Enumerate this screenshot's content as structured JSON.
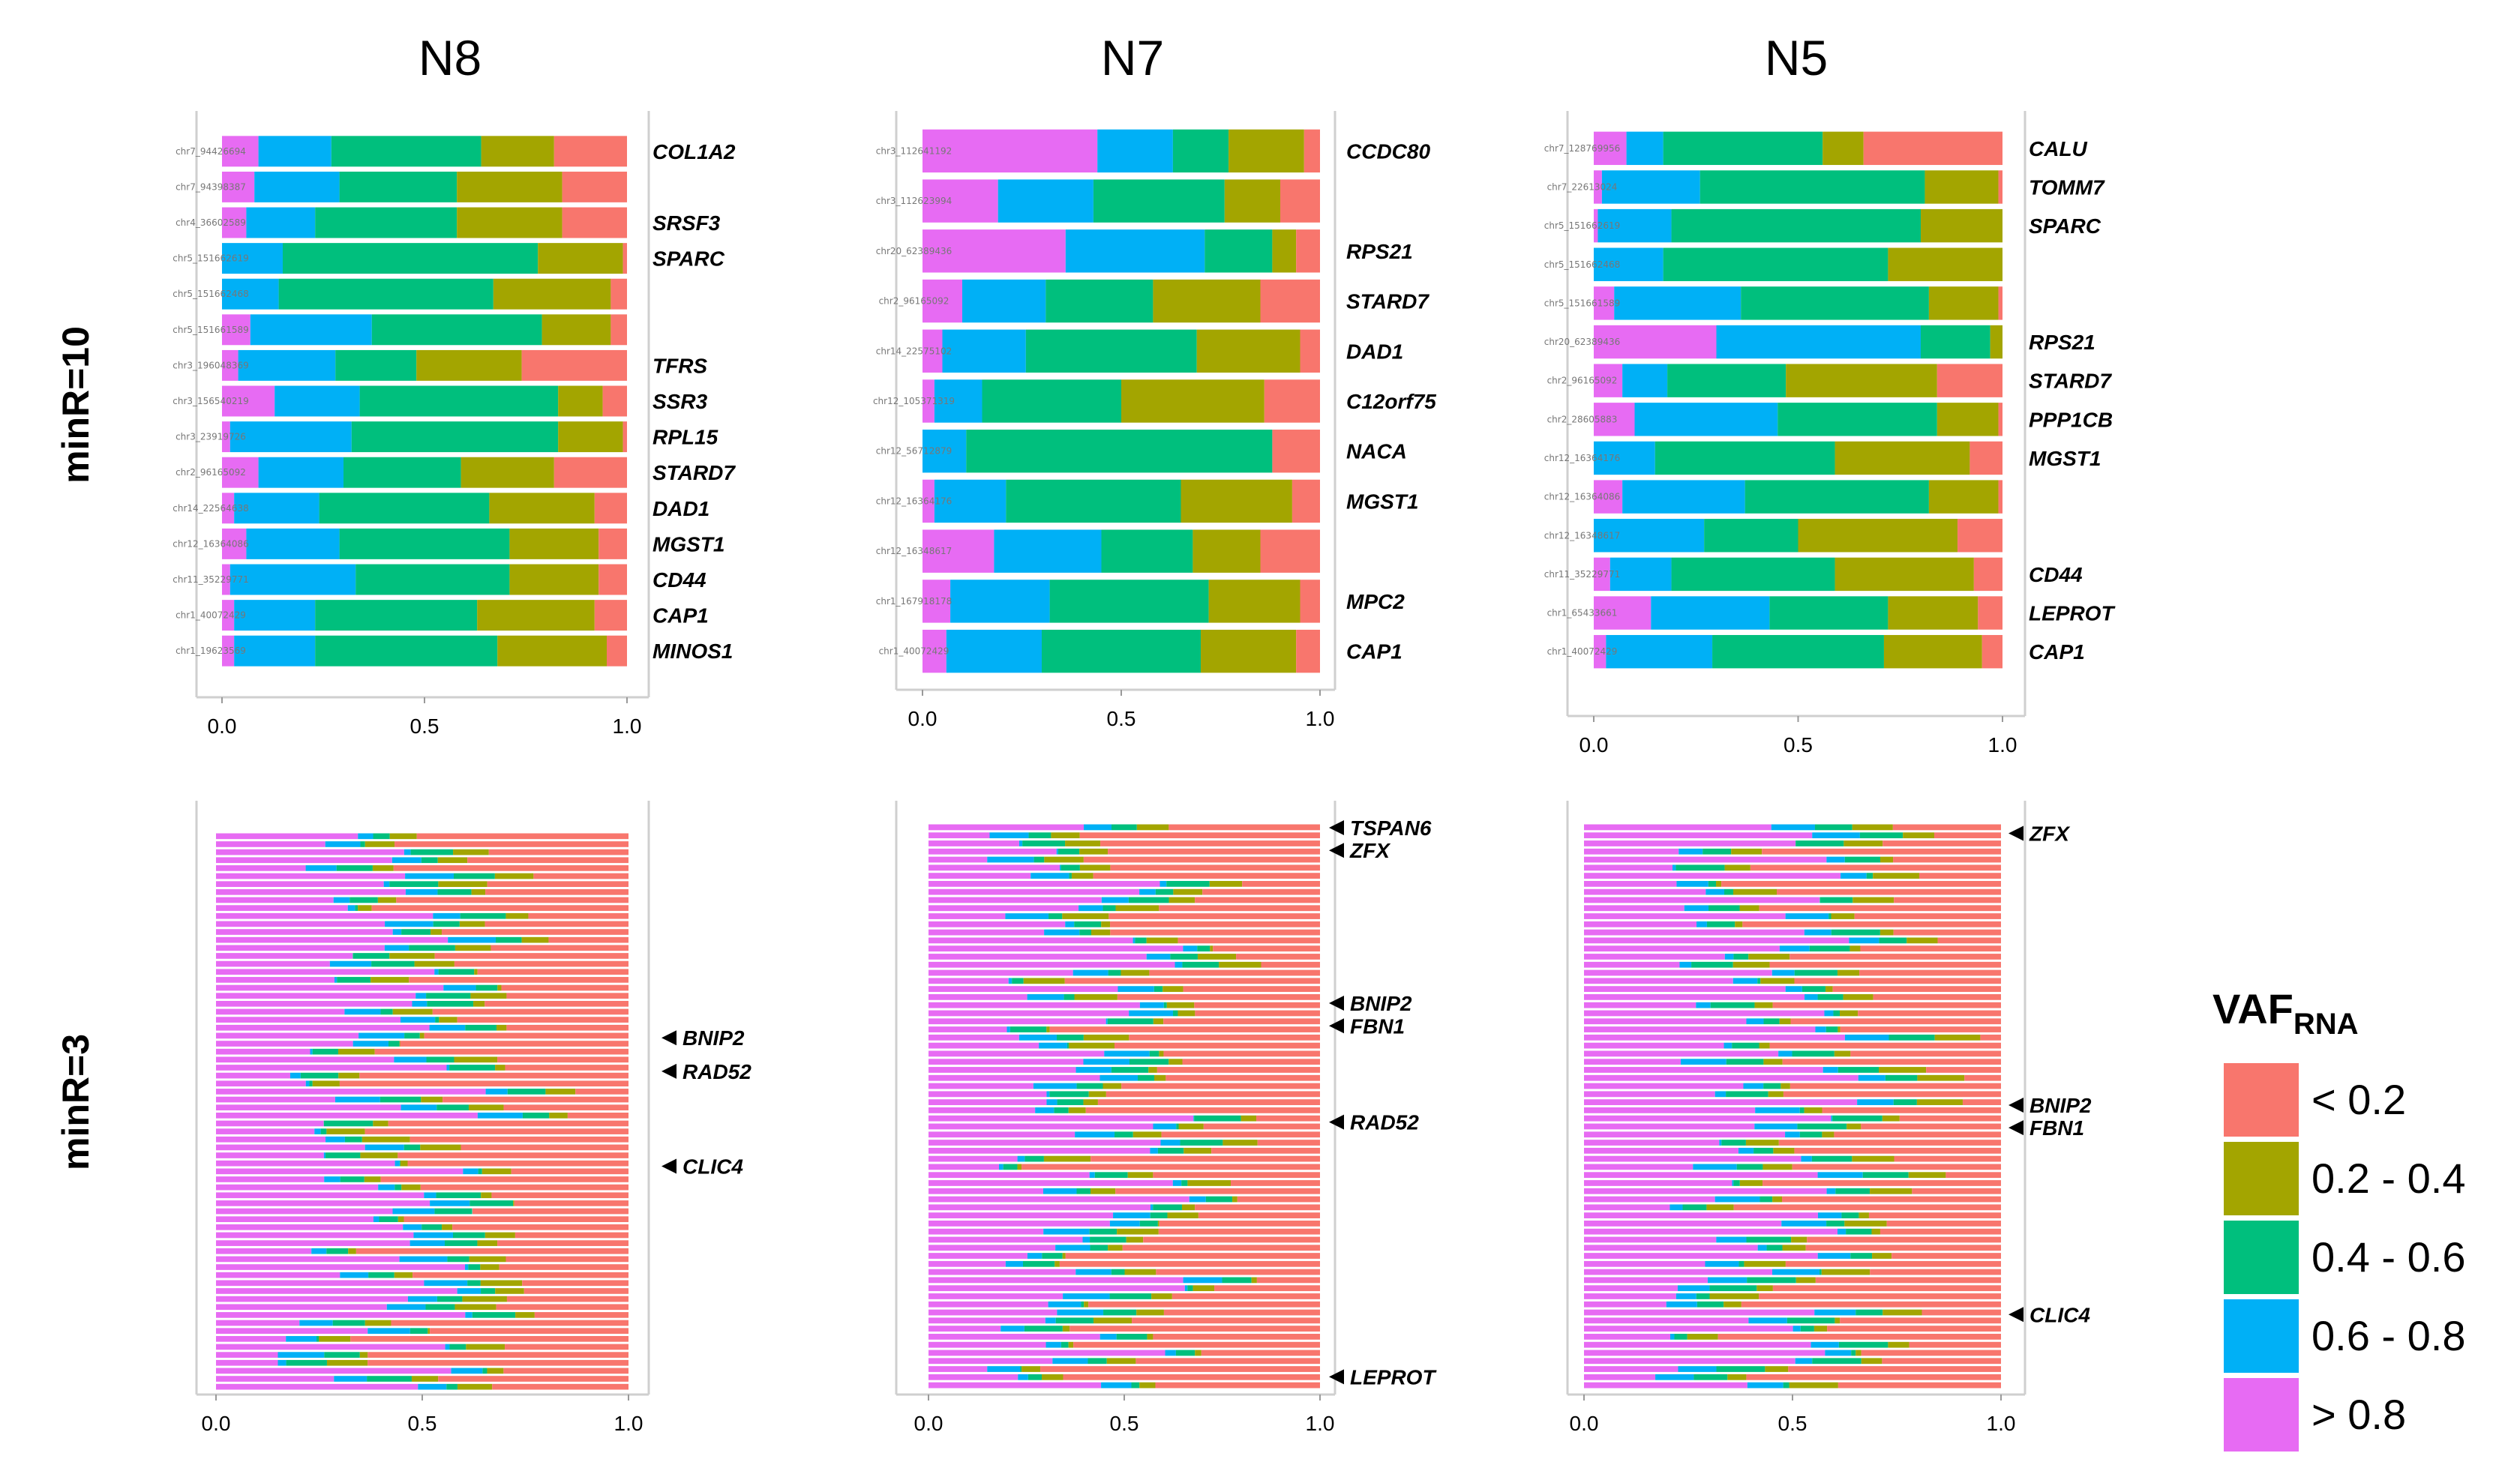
{
  "colors": {
    "lt02": "#F8766D",
    "b0204": "#A3A500",
    "b0406": "#00BF7D",
    "b0608": "#00B0F6",
    "gt08": "#E76BF3"
  },
  "column_titles": [
    "N8",
    "N7",
    "N5"
  ],
  "row_labels": [
    "minR=10",
    "minR=3"
  ],
  "legend": {
    "title": "VAF",
    "subscript": "RNA",
    "items": [
      {
        "label": "< 0.2",
        "color_key": "lt02"
      },
      {
        "label": "0.2  - 0.4",
        "color_key": "b0204"
      },
      {
        "label": "0.4  - 0.6",
        "color_key": "b0406"
      },
      {
        "label": "0.6  - 0.8",
        "color_key": "b0608"
      },
      {
        "label": "> 0.8",
        "color_key": "gt08"
      }
    ]
  },
  "chart_data": [
    {
      "type": "bar",
      "panel": "N8 minR=10",
      "orientation": "horizontal-stacked",
      "xlim": [
        0,
        1
      ],
      "xticks": [
        "0.0",
        "0.5",
        "1.0"
      ],
      "rows": [
        {
          "loc": "chr7_94426694",
          "gene": "COL1A2",
          "values": [
            0.18,
            0.18,
            0.37,
            0.18,
            0.09
          ]
        },
        {
          "loc": "chr7_94398387",
          "gene": "",
          "values": [
            0.16,
            0.26,
            0.29,
            0.21,
            0.08
          ]
        },
        {
          "loc": "chr4_36602589",
          "gene": "SRSF3",
          "values": [
            0.16,
            0.26,
            0.35,
            0.17,
            0.06
          ]
        },
        {
          "loc": "chr5_151662619",
          "gene": "SPARC",
          "values": [
            0.01,
            0.21,
            0.63,
            0.15,
            0.0
          ]
        },
        {
          "loc": "chr5_151662468",
          "gene": "",
          "values": [
            0.04,
            0.29,
            0.53,
            0.14,
            0.0
          ]
        },
        {
          "loc": "chr5_151661589",
          "gene": "",
          "values": [
            0.04,
            0.17,
            0.42,
            0.3,
            0.07
          ]
        },
        {
          "loc": "chr3_196048369",
          "gene": "TFRS",
          "values": [
            0.26,
            0.26,
            0.2,
            0.24,
            0.04
          ]
        },
        {
          "loc": "chr3_156540219",
          "gene": "SSR3",
          "values": [
            0.06,
            0.11,
            0.49,
            0.21,
            0.13
          ]
        },
        {
          "loc": "chr3_23919726",
          "gene": "RPL15",
          "values": [
            0.01,
            0.16,
            0.51,
            0.3,
            0.02
          ]
        },
        {
          "loc": "chr2_96165092",
          "gene": "STARD7",
          "values": [
            0.18,
            0.23,
            0.29,
            0.21,
            0.09
          ]
        },
        {
          "loc": "chr14_22564638",
          "gene": "DAD1",
          "values": [
            0.08,
            0.26,
            0.42,
            0.21,
            0.03
          ]
        },
        {
          "loc": "chr12_16364086",
          "gene": "MGST1",
          "values": [
            0.07,
            0.22,
            0.42,
            0.23,
            0.06
          ]
        },
        {
          "loc": "chr11_35229771",
          "gene": "CD44",
          "values": [
            0.07,
            0.22,
            0.38,
            0.31,
            0.02
          ]
        },
        {
          "loc": "chr1_40072429",
          "gene": "CAP1",
          "values": [
            0.08,
            0.29,
            0.4,
            0.2,
            0.03
          ]
        },
        {
          "loc": "chr1_19623569",
          "gene": "MINOS1",
          "values": [
            0.05,
            0.27,
            0.45,
            0.2,
            0.03
          ]
        }
      ]
    },
    {
      "type": "bar",
      "panel": "N7 minR=10",
      "orientation": "horizontal-stacked",
      "xlim": [
        0,
        1
      ],
      "xticks": [
        "0.0",
        "0.5",
        "1.0"
      ],
      "rows": [
        {
          "loc": "chr3_112641192",
          "gene": "CCDC80",
          "values": [
            0.04,
            0.19,
            0.14,
            0.19,
            0.44
          ]
        },
        {
          "loc": "chr3_112623994",
          "gene": "",
          "values": [
            0.1,
            0.14,
            0.33,
            0.24,
            0.19
          ]
        },
        {
          "loc": "chr20_62389436",
          "gene": "RPS21",
          "values": [
            0.06,
            0.06,
            0.17,
            0.35,
            0.36
          ]
        },
        {
          "loc": "chr2_96165092",
          "gene": "STARD7",
          "values": [
            0.15,
            0.27,
            0.27,
            0.21,
            0.1
          ]
        },
        {
          "loc": "chr14_22575102",
          "gene": "DAD1",
          "values": [
            0.05,
            0.26,
            0.43,
            0.21,
            0.05
          ]
        },
        {
          "loc": "chr12_105371319",
          "gene": "C12orf75",
          "values": [
            0.14,
            0.36,
            0.35,
            0.12,
            0.03
          ]
        },
        {
          "loc": "chr12_56712879",
          "gene": "NACA",
          "values": [
            0.12,
            0.0,
            0.77,
            0.11,
            0.0
          ]
        },
        {
          "loc": "chr12_16364176",
          "gene": "MGST1",
          "values": [
            0.07,
            0.28,
            0.44,
            0.18,
            0.03
          ]
        },
        {
          "loc": "chr12_16348617",
          "gene": "",
          "values": [
            0.15,
            0.17,
            0.23,
            0.27,
            0.18
          ]
        },
        {
          "loc": "chr1_167918178",
          "gene": "MPC2",
          "values": [
            0.05,
            0.23,
            0.4,
            0.25,
            0.07
          ]
        },
        {
          "loc": "chr1_40072429",
          "gene": "CAP1",
          "values": [
            0.06,
            0.24,
            0.4,
            0.24,
            0.06
          ]
        }
      ]
    },
    {
      "type": "bar",
      "panel": "N5 minR=10",
      "orientation": "horizontal-stacked",
      "xlim": [
        0,
        1
      ],
      "xticks": [
        "0.0",
        "0.5",
        "1.0"
      ],
      "rows": [
        {
          "loc": "chr7_128769956",
          "gene": "CALU",
          "values": [
            0.34,
            0.1,
            0.39,
            0.09,
            0.08
          ]
        },
        {
          "loc": "chr7_22613024",
          "gene": "TOMM7",
          "values": [
            0.01,
            0.18,
            0.55,
            0.24,
            0.02
          ]
        },
        {
          "loc": "chr5_151662619",
          "gene": "SPARC",
          "values": [
            0.0,
            0.2,
            0.61,
            0.18,
            0.01
          ]
        },
        {
          "loc": "chr5_151662468",
          "gene": "",
          "values": [
            0.0,
            0.28,
            0.55,
            0.17,
            0.0
          ]
        },
        {
          "loc": "chr5_151661589",
          "gene": "",
          "values": [
            0.01,
            0.17,
            0.46,
            0.31,
            0.05
          ]
        },
        {
          "loc": "chr20_62389436",
          "gene": "RPS21",
          "values": [
            0.0,
            0.03,
            0.17,
            0.5,
            0.3
          ]
        },
        {
          "loc": "chr2_96165092",
          "gene": "STARD7",
          "values": [
            0.16,
            0.37,
            0.29,
            0.11,
            0.07
          ]
        },
        {
          "loc": "chr2_28605883",
          "gene": "PPP1CB",
          "values": [
            0.01,
            0.15,
            0.39,
            0.35,
            0.1
          ]
        },
        {
          "loc": "chr12_16364176",
          "gene": "MGST1",
          "values": [
            0.08,
            0.33,
            0.44,
            0.15,
            0.0
          ]
        },
        {
          "loc": "chr12_16364086",
          "gene": "",
          "values": [
            0.01,
            0.17,
            0.45,
            0.3,
            0.07
          ]
        },
        {
          "loc": "chr12_16348617",
          "gene": "",
          "values": [
            0.11,
            0.39,
            0.23,
            0.27,
            0.0
          ]
        },
        {
          "loc": "chr11_35229771",
          "gene": "CD44",
          "values": [
            0.07,
            0.34,
            0.4,
            0.15,
            0.04
          ]
        },
        {
          "loc": "chr1_65433661",
          "gene": "LEPROT",
          "values": [
            0.06,
            0.22,
            0.29,
            0.29,
            0.14
          ]
        },
        {
          "loc": "chr1_40072429",
          "gene": "CAP1",
          "values": [
            0.05,
            0.24,
            0.42,
            0.26,
            0.03
          ]
        }
      ]
    },
    {
      "type": "bar",
      "panel": "N8 minR=3",
      "orientation": "horizontal-stacked-dense",
      "xlim": [
        0,
        1
      ],
      "xticks": [
        "0.0",
        "0.5",
        "1.0"
      ],
      "row_count": 70,
      "approx_mean_shares": [
        0.62,
        0.12,
        0.1,
        0.06,
        0.1
      ],
      "annotations": [
        {
          "gene": "BNIP2",
          "row_fraction": 0.36
        },
        {
          "gene": "RAD52",
          "row_fraction": 0.42
        },
        {
          "gene": "CLIC4",
          "row_fraction": 0.59
        }
      ]
    },
    {
      "type": "bar",
      "panel": "N7 minR=3",
      "orientation": "horizontal-stacked-dense",
      "xlim": [
        0,
        1
      ],
      "xticks": [
        "0.0",
        "0.5",
        "1.0"
      ],
      "row_count": 70,
      "approx_mean_shares": [
        0.6,
        0.12,
        0.1,
        0.06,
        0.12
      ],
      "annotations": [
        {
          "gene": "TSPAN6",
          "row_fraction": 0.0
        },
        {
          "gene": "ZFX",
          "row_fraction": 0.04
        },
        {
          "gene": "BNIP2",
          "row_fraction": 0.31
        },
        {
          "gene": "FBN1",
          "row_fraction": 0.35
        },
        {
          "gene": "RAD52",
          "row_fraction": 0.52
        },
        {
          "gene": "LEPROT",
          "row_fraction": 0.97
        }
      ]
    },
    {
      "type": "bar",
      "panel": "N5 minR=3",
      "orientation": "horizontal-stacked-dense",
      "xlim": [
        0,
        1
      ],
      "xticks": [
        "0.0",
        "0.5",
        "1.0"
      ],
      "row_count": 70,
      "approx_mean_shares": [
        0.58,
        0.12,
        0.1,
        0.06,
        0.14
      ],
      "annotations": [
        {
          "gene": "ZFX",
          "row_fraction": 0.01
        },
        {
          "gene": "BNIP2",
          "row_fraction": 0.49
        },
        {
          "gene": "FBN1",
          "row_fraction": 0.53
        },
        {
          "gene": "CLIC4",
          "row_fraction": 0.86
        }
      ]
    }
  ]
}
